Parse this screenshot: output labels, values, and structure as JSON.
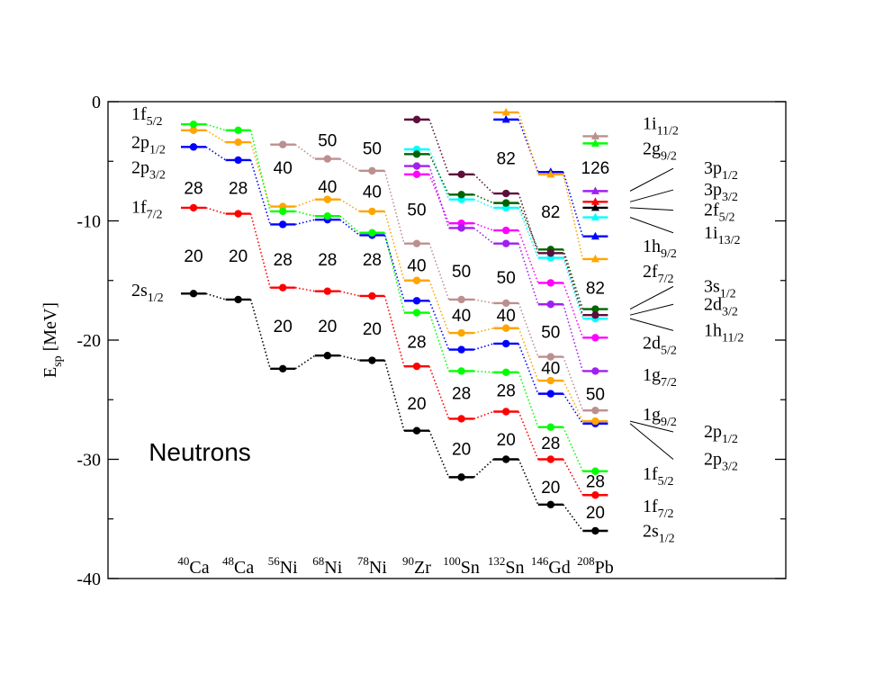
{
  "chart_data": {
    "type": "level-scheme",
    "title": "",
    "ylabel": "E",
    "ylabel_sub": "sp",
    "ylabel_unit": " [MeV]",
    "ylim": [
      -40,
      0
    ],
    "yticks": [
      0,
      -10,
      -20,
      -30,
      -40
    ],
    "panel_label": "Neutrons",
    "nuclei": [
      {
        "mass": "40",
        "sym": "Ca"
      },
      {
        "mass": "48",
        "sym": "Ca"
      },
      {
        "mass": "56",
        "sym": "Ni"
      },
      {
        "mass": "68",
        "sym": "Ni"
      },
      {
        "mass": "78",
        "sym": "Ni"
      },
      {
        "mass": "90",
        "sym": "Zr"
      },
      {
        "mass": "100",
        "sym": "Sn"
      },
      {
        "mass": "132",
        "sym": "Sn"
      },
      {
        "mass": "146",
        "sym": "Gd"
      },
      {
        "mass": "208",
        "sym": "Pb"
      }
    ],
    "series": [
      {
        "id": "1s2s",
        "color": "#000000",
        "marker": "circle",
        "values": [
          -16.1,
          -16.6,
          -22.4,
          -21.3,
          -21.7,
          -27.6,
          -31.5,
          -30.0,
          -33.8,
          -36.0
        ]
      },
      {
        "id": "1f7",
        "color": "#ff0000",
        "marker": "circle",
        "values": [
          -8.9,
          -9.4,
          -15.6,
          -15.9,
          -16.3,
          -22.2,
          -26.6,
          -26.0,
          -30.0,
          -33.0
        ]
      },
      {
        "id": "2p3",
        "color": "#0000ff",
        "marker": "circle",
        "values": [
          -3.8,
          -4.9,
          -10.3,
          -9.9,
          -11.2,
          -16.7,
          -20.8,
          -20.3,
          -24.5,
          -27.0
        ]
      },
      {
        "id": "2p1",
        "color": "#ffa500",
        "marker": "circle",
        "values": [
          -2.4,
          -3.4,
          -8.8,
          -8.2,
          -9.2,
          -15.0,
          -19.4,
          -19.0,
          -23.4,
          -26.8
        ]
      },
      {
        "id": "1f5",
        "color": "#00ff00",
        "marker": "circle",
        "values": [
          -1.9,
          -2.4,
          -9.2,
          -9.6,
          -11.0,
          -17.7,
          -22.6,
          -22.7,
          -27.3,
          -31.0
        ]
      },
      {
        "id": "1g9",
        "color": "#bc8f8f",
        "marker": "circle",
        "values": [
          null,
          null,
          -3.6,
          -4.8,
          -5.8,
          -11.9,
          -16.6,
          -16.9,
          -21.4,
          -25.9
        ]
      },
      {
        "id": "2d5",
        "color": "#ff00ff",
        "marker": "circle",
        "values": [
          null,
          null,
          null,
          null,
          null,
          -6.1,
          -10.2,
          -10.8,
          -15.2,
          -19.8
        ]
      },
      {
        "id": "1g7",
        "color": "#a020f0",
        "marker": "circle",
        "values": [
          null,
          null,
          null,
          null,
          null,
          -5.4,
          -10.6,
          -11.9,
          -17.0,
          -22.6
        ]
      },
      {
        "id": "3s1",
        "color": "#00ffff",
        "marker": "circle",
        "values": [
          null,
          null,
          null,
          null,
          null,
          -4.0,
          -8.2,
          -8.9,
          -13.1,
          -18.2
        ]
      },
      {
        "id": "2d3",
        "color": "#006400",
        "marker": "circle",
        "values": [
          null,
          null,
          null,
          null,
          null,
          -4.4,
          -7.8,
          -8.5,
          -12.4,
          -17.4
        ]
      },
      {
        "id": "1h11",
        "color": "#5b0f3a",
        "marker": "circle",
        "values": [
          null,
          null,
          null,
          null,
          null,
          -1.5,
          -6.1,
          -7.7,
          -12.7,
          -17.9
        ]
      },
      {
        "id": "1h9",
        "color": "#0000ff",
        "marker": "triangle",
        "values": [
          null,
          null,
          null,
          null,
          null,
          null,
          null,
          -1.5,
          -5.9,
          -11.3
        ]
      },
      {
        "id": "2f7",
        "color": "#ffa500",
        "marker": "triangle",
        "values": [
          null,
          null,
          null,
          null,
          null,
          null,
          null,
          -0.9,
          -6.1,
          -13.2
        ]
      },
      {
        "id": "1i13",
        "color": "#00ffff",
        "marker": "triangle",
        "values": [
          null,
          null,
          null,
          null,
          null,
          null,
          null,
          null,
          null,
          -9.7
        ]
      },
      {
        "id": "2f5",
        "color": "#000000",
        "marker": "triangle",
        "values": [
          null,
          null,
          null,
          null,
          null,
          null,
          null,
          null,
          null,
          -8.9
        ]
      },
      {
        "id": "3p3",
        "color": "#ff0000",
        "marker": "triangle",
        "values": [
          null,
          null,
          null,
          null,
          null,
          null,
          null,
          null,
          null,
          -8.4
        ]
      },
      {
        "id": "3p1",
        "color": "#a020f0",
        "marker": "triangle",
        "values": [
          null,
          null,
          null,
          null,
          null,
          null,
          null,
          null,
          null,
          -7.5
        ]
      },
      {
        "id": "2g9",
        "color": "#00ff00",
        "marker": "triangle",
        "values": [
          null,
          null,
          null,
          null,
          null,
          null,
          null,
          null,
          null,
          -3.5
        ]
      },
      {
        "id": "1i11",
        "color": "#bc8f8f",
        "marker": "triangle",
        "values": [
          null,
          null,
          null,
          null,
          null,
          null,
          null,
          null,
          null,
          -2.9
        ]
      }
    ],
    "magic_numbers": [
      {
        "text": "28",
        "n": 0,
        "y": -7.2
      },
      {
        "text": "20",
        "n": 0,
        "y": -12.9
      },
      {
        "text": "28",
        "n": 1,
        "y": -7.2
      },
      {
        "text": "20",
        "n": 1,
        "y": -12.9
      },
      {
        "text": "40",
        "n": 2,
        "y": -5.5
      },
      {
        "text": "28",
        "n": 2,
        "y": -13.2
      },
      {
        "text": "20",
        "n": 2,
        "y": -18.8
      },
      {
        "text": "50",
        "n": 3,
        "y": -3.2
      },
      {
        "text": "40",
        "n": 3,
        "y": -7.1
      },
      {
        "text": "28",
        "n": 3,
        "y": -13.2
      },
      {
        "text": "20",
        "n": 3,
        "y": -18.8
      },
      {
        "text": "50",
        "n": 4,
        "y": -3.9
      },
      {
        "text": "40",
        "n": 4,
        "y": -7.5
      },
      {
        "text": "28",
        "n": 4,
        "y": -13.2
      },
      {
        "text": "20",
        "n": 4,
        "y": -19.0
      },
      {
        "text": "50",
        "n": 5,
        "y": -9.0
      },
      {
        "text": "40",
        "n": 5,
        "y": -13.7
      },
      {
        "text": "28",
        "n": 5,
        "y": -20.1
      },
      {
        "text": "20",
        "n": 5,
        "y": -25.3
      },
      {
        "text": "50",
        "n": 6,
        "y": -14.2
      },
      {
        "text": "40",
        "n": 6,
        "y": -17.9
      },
      {
        "text": "28",
        "n": 6,
        "y": -24.4
      },
      {
        "text": "20",
        "n": 6,
        "y": -29.1
      },
      {
        "text": "82",
        "n": 7,
        "y": -4.7
      },
      {
        "text": "50",
        "n": 7,
        "y": -14.7
      },
      {
        "text": "40",
        "n": 7,
        "y": -17.9
      },
      {
        "text": "28",
        "n": 7,
        "y": -24.2
      },
      {
        "text": "20",
        "n": 7,
        "y": -28.3
      },
      {
        "text": "82",
        "n": 8,
        "y": -9.2
      },
      {
        "text": "50",
        "n": 8,
        "y": -19.3
      },
      {
        "text": "40",
        "n": 8,
        "y": -22.3
      },
      {
        "text": "28",
        "n": 8,
        "y": -28.6
      },
      {
        "text": "20",
        "n": 8,
        "y": -32.3
      },
      {
        "text": "126",
        "n": 9,
        "y": -5.5
      },
      {
        "text": "82",
        "n": 9,
        "y": -15.6
      },
      {
        "text": "50",
        "n": 9,
        "y": -24.5
      },
      {
        "text": "28",
        "n": 9,
        "y": -31.8
      },
      {
        "text": "20",
        "n": 9,
        "y": -34.4
      }
    ],
    "left_labels": [
      {
        "base": "1f",
        "sub": "5/2",
        "y": -1.2
      },
      {
        "base": "2p",
        "sub": "1/2",
        "y": -3.6
      },
      {
        "base": "2p",
        "sub": "3/2",
        "y": -5.7
      },
      {
        "base": "1f",
        "sub": "7/2",
        "y": -9.0
      },
      {
        "base": "2s",
        "sub": "1/2",
        "y": -16.0
      }
    ],
    "right_labels_direct": [
      {
        "base": "1i",
        "sub": "11/2",
        "y": -2.0
      },
      {
        "base": "2g",
        "sub": "9/2",
        "y": -4.1
      },
      {
        "base": "1h",
        "sub": "9/2",
        "y": -12.3
      },
      {
        "base": "2f",
        "sub": "7/2",
        "y": -14.4
      },
      {
        "base": "2d",
        "sub": "5/2",
        "y": -20.4
      },
      {
        "base": "1g",
        "sub": "7/2",
        "y": -23.1
      },
      {
        "base": "1g",
        "sub": "9/2",
        "y": -26.4
      },
      {
        "base": "1f",
        "sub": "5/2",
        "y": -31.4
      },
      {
        "base": "1f",
        "sub": "7/2",
        "y": -34.1
      },
      {
        "base": "2s",
        "sub": "1/2",
        "y": -36.2
      }
    ],
    "right_labels_far": [
      {
        "base": "3p",
        "sub": "1/2",
        "y": -5.6,
        "ly": -7.5
      },
      {
        "base": "3p",
        "sub": "3/2",
        "y": -7.4,
        "ly": -8.4
      },
      {
        "base": "2f",
        "sub": "5/2",
        "y": -9.1,
        "ly": -8.9
      },
      {
        "base": "1i",
        "sub": "13/2",
        "y": -11.0,
        "ly": -9.7
      },
      {
        "base": "3s",
        "sub": "1/2",
        "y": -15.5,
        "ly": -17.4
      },
      {
        "base": "2d",
        "sub": "3/2",
        "y": -17.0,
        "ly": -17.9
      },
      {
        "base": "1h",
        "sub": "11/2",
        "y": -19.2,
        "ly": -18.2
      },
      {
        "base": "2p",
        "sub": "1/2",
        "y": -27.7,
        "ly": -26.8
      },
      {
        "base": "2p",
        "sub": "3/2",
        "y": -30.0,
        "ly": -27.0
      }
    ]
  }
}
